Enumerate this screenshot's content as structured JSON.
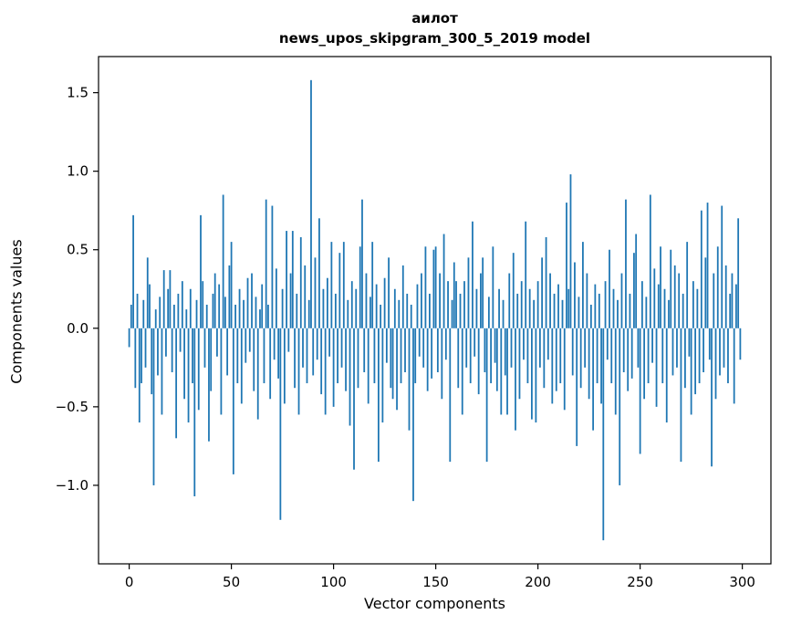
{
  "figure": {
    "title_line1": "аилот",
    "title_line2": "news_upos_skipgram_300_5_2019 model"
  },
  "chart_data": {
    "type": "bar",
    "title": "аилот",
    "subtitle": "news_upos_skipgram_300_5_2019 model",
    "xlabel": "Vector components",
    "ylabel": "Components values",
    "bar_color": "#1f77b4",
    "xlim": [
      -15,
      314
    ],
    "ylim": [
      -1.5,
      1.73
    ],
    "xticks": [
      0,
      50,
      100,
      150,
      200,
      250,
      300
    ],
    "yticks": [
      -1.0,
      -0.5,
      0.0,
      0.5,
      1.0,
      1.5
    ],
    "x_start": 0,
    "values": [
      -0.12,
      0.15,
      0.72,
      -0.38,
      0.22,
      -0.6,
      -0.35,
      0.18,
      -0.25,
      0.45,
      0.28,
      -0.42,
      -1.0,
      0.12,
      -0.3,
      0.2,
      -0.55,
      0.37,
      -0.18,
      0.25,
      0.37,
      -0.28,
      0.15,
      -0.7,
      0.22,
      -0.15,
      0.3,
      -0.45,
      0.12,
      -0.6,
      0.25,
      -0.35,
      -1.07,
      0.18,
      -0.52,
      0.72,
      0.3,
      -0.25,
      0.15,
      -0.72,
      -0.4,
      0.22,
      0.35,
      -0.18,
      0.28,
      -0.55,
      0.85,
      0.2,
      -0.3,
      0.4,
      0.55,
      -0.93,
      0.15,
      -0.35,
      0.25,
      -0.48,
      0.18,
      -0.22,
      0.32,
      -0.15,
      0.35,
      -0.4,
      0.2,
      -0.58,
      0.12,
      0.28,
      -0.35,
      0.82,
      0.15,
      -0.45,
      0.78,
      -0.2,
      0.38,
      -0.32,
      -1.22,
      0.25,
      -0.48,
      0.62,
      -0.15,
      0.35,
      0.62,
      -0.38,
      0.22,
      -0.55,
      0.58,
      -0.25,
      0.4,
      -0.35,
      0.18,
      1.58,
      -0.3,
      0.45,
      -0.2,
      0.7,
      -0.42,
      0.25,
      -0.55,
      0.32,
      -0.18,
      0.55,
      -0.5,
      0.22,
      -0.35,
      0.48,
      -0.25,
      0.55,
      -0.4,
      0.18,
      -0.62,
      0.3,
      -0.9,
      0.25,
      -0.38,
      0.52,
      0.82,
      -0.28,
      0.35,
      -0.48,
      0.2,
      0.55,
      -0.35,
      0.28,
      -0.85,
      0.15,
      -0.6,
      0.32,
      -0.22,
      0.45,
      -0.38,
      -0.45,
      0.25,
      -0.52,
      0.18,
      -0.35,
      0.4,
      -0.28,
      0.22,
      -0.65,
      0.15,
      -1.1,
      -0.35,
      0.28,
      -0.18,
      0.35,
      -0.25,
      0.52,
      -0.4,
      0.22,
      -0.32,
      0.5,
      0.52,
      -0.28,
      0.35,
      -0.45,
      0.6,
      -0.2,
      0.3,
      -0.85,
      0.18,
      0.42,
      0.3,
      -0.38,
      0.22,
      -0.55,
      0.3,
      -0.25,
      0.45,
      -0.35,
      0.68,
      -0.18,
      0.25,
      -0.42,
      0.35,
      0.45,
      -0.28,
      -0.85,
      0.2,
      -0.35,
      0.52,
      -0.22,
      -0.4,
      0.25,
      -0.55,
      0.18,
      -0.3,
      -0.55,
      0.35,
      -0.25,
      0.48,
      -0.65,
      0.22,
      -0.45,
      0.3,
      -0.2,
      0.68,
      -0.35,
      0.25,
      -0.58,
      0.18,
      -0.6,
      0.3,
      -0.25,
      0.45,
      -0.38,
      0.58,
      -0.2,
      0.35,
      -0.48,
      0.22,
      -0.4,
      0.28,
      -0.35,
      0.18,
      -0.52,
      0.8,
      0.25,
      0.98,
      -0.3,
      0.42,
      -0.75,
      0.2,
      -0.38,
      0.55,
      -0.25,
      0.35,
      -0.45,
      0.15,
      -0.65,
      0.28,
      -0.35,
      0.22,
      -0.48,
      -1.35,
      0.3,
      -0.2,
      0.5,
      -0.35,
      0.25,
      -0.55,
      0.18,
      -1.0,
      0.35,
      -0.28,
      0.82,
      -0.4,
      0.22,
      -0.32,
      0.48,
      0.6,
      -0.25,
      -0.8,
      0.3,
      -0.45,
      0.2,
      -0.35,
      0.85,
      -0.22,
      0.38,
      -0.5,
      0.28,
      0.52,
      -0.35,
      0.25,
      -0.6,
      0.18,
      0.5,
      -0.3,
      0.4,
      -0.25,
      0.35,
      -0.85,
      0.22,
      -0.38,
      0.55,
      -0.18,
      -0.55,
      0.3,
      -0.42,
      0.25,
      -0.35,
      0.75,
      -0.28,
      0.45,
      0.8,
      -0.2,
      -0.88,
      0.35,
      -0.45,
      0.52,
      -0.3,
      0.78,
      -0.25,
      0.4,
      -0.35,
      0.22,
      0.35,
      -0.48,
      0.28,
      0.7,
      -0.2
    ]
  }
}
